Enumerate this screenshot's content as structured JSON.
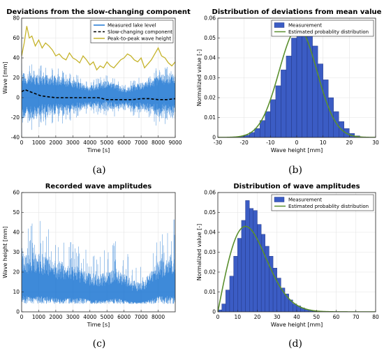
{
  "chart_data": [
    {
      "panel": "(a)",
      "type": "line",
      "title": "Deviations from the slow-changing component",
      "xlabel": "Time [s]",
      "ylabel": "Wave [mm]",
      "xlim": [
        0,
        9000
      ],
      "ylim": [
        -40,
        80
      ],
      "xticks": [
        0,
        1000,
        2000,
        3000,
        4000,
        5000,
        6000,
        7000,
        8000,
        9000
      ],
      "yticks": [
        -40,
        -20,
        0,
        20,
        40,
        60,
        80
      ],
      "grid": true,
      "legend": {
        "placement": "top-right",
        "entries": [
          "Measured lake level",
          "Slow-changing component",
          "Peak-to-peak wave height"
        ]
      },
      "series": [
        {
          "name": "Measured lake level",
          "color": "#1f77d4",
          "style": "noise-band",
          "x": [
            0,
            1000,
            2000,
            3000,
            4000,
            5000,
            6000,
            7000,
            8000,
            9000
          ],
          "upper": [
            30,
            28,
            26,
            22,
            14,
            20,
            12,
            18,
            26,
            30
          ],
          "lower": [
            -28,
            -24,
            -20,
            -18,
            -12,
            -14,
            -12,
            -16,
            -20,
            -24
          ]
        },
        {
          "name": "Slow-changing component",
          "color": "#000000",
          "style": "dashed",
          "x": [
            0,
            200,
            500,
            800,
            1100,
            1500,
            2000,
            2500,
            3000,
            3500,
            4000,
            4500,
            5000,
            5500,
            6000,
            6500,
            7000,
            7500,
            8000,
            8500,
            9000
          ],
          "y": [
            6,
            8,
            6,
            4,
            2,
            1,
            0,
            0,
            0,
            0,
            0,
            0,
            -2,
            -2,
            -2,
            -2,
            -1,
            -1,
            -2,
            -2,
            -1
          ]
        },
        {
          "name": "Peak-to-peak wave height",
          "color": "#c5b32a",
          "style": "solid",
          "x": [
            0,
            150,
            300,
            450,
            600,
            800,
            1000,
            1200,
            1400,
            1600,
            1800,
            2000,
            2200,
            2400,
            2600,
            2800,
            3000,
            3200,
            3400,
            3600,
            3800,
            4000,
            4200,
            4400,
            4600,
            4800,
            5000,
            5200,
            5400,
            5600,
            5800,
            6000,
            6200,
            6400,
            6600,
            6800,
            7000,
            7200,
            7400,
            7600,
            7800,
            8000,
            8200,
            8400,
            8600,
            8800,
            9000
          ],
          "y": [
            42,
            55,
            72,
            60,
            62,
            52,
            58,
            50,
            55,
            52,
            48,
            42,
            44,
            40,
            38,
            45,
            40,
            38,
            35,
            42,
            38,
            33,
            36,
            28,
            32,
            30,
            36,
            32,
            30,
            34,
            38,
            40,
            44,
            42,
            38,
            36,
            40,
            30,
            34,
            38,
            44,
            50,
            42,
            40,
            35,
            32,
            36
          ]
        }
      ]
    },
    {
      "panel": "(b)",
      "type": "bar",
      "title": "Distribution of deviations from mean value",
      "xlabel": "Wave height [mm]",
      "ylabel": "Normalized value [-]",
      "xlim": [
        -30,
        30
      ],
      "ylim": [
        0,
        0.06
      ],
      "xticks": [
        -30,
        -20,
        -10,
        0,
        10,
        20,
        30
      ],
      "yticks": [
        0,
        0.01,
        0.02,
        0.03,
        0.04,
        0.05,
        0.06
      ],
      "grid": true,
      "legend": {
        "placement": "top-right",
        "entries": [
          "Measurement",
          "Estimated probablity distribution"
        ]
      },
      "series": [
        {
          "name": "Measurement",
          "color": "#3b5cc4",
          "bin_width": 2,
          "bin_centers": [
            -23,
            -21,
            -19,
            -17,
            -15,
            -13,
            -11,
            -9,
            -7,
            -5,
            -3,
            -1,
            1,
            3,
            5,
            7,
            9,
            11,
            13,
            15,
            17,
            19,
            21,
            23
          ],
          "values": [
            0.0003,
            0.0006,
            0.0012,
            0.0025,
            0.0045,
            0.0085,
            0.013,
            0.019,
            0.026,
            0.034,
            0.041,
            0.05,
            0.053,
            0.053,
            0.052,
            0.046,
            0.037,
            0.029,
            0.02,
            0.013,
            0.008,
            0.0045,
            0.002,
            0.0008
          ]
        },
        {
          "name": "Estimated probablity distribution",
          "color": "#5a8f2e",
          "kind": "normal",
          "mean": 0.5,
          "std": 7.2,
          "peak": 0.055
        }
      ]
    },
    {
      "panel": "(c)",
      "type": "line",
      "title": "Recorded wave amplitudes",
      "xlabel": "Time [s]",
      "ylabel": "Wave height [mm]",
      "xlim": [
        0,
        9000
      ],
      "ylim": [
        0,
        60
      ],
      "xticks": [
        0,
        1000,
        2000,
        3000,
        4000,
        5000,
        6000,
        7000,
        8000
      ],
      "yticks": [
        0,
        10,
        20,
        30,
        40,
        50,
        60
      ],
      "grid": true,
      "series": [
        {
          "name": "",
          "color": "#1f77d4",
          "style": "noise-band",
          "x": [
            0,
            500,
            1000,
            1500,
            2000,
            2500,
            3000,
            3500,
            4000,
            4500,
            5000,
            5500,
            6000,
            6500,
            7000,
            7500,
            8000,
            8500,
            9000
          ],
          "upper": [
            52,
            45,
            48,
            44,
            40,
            38,
            36,
            35,
            30,
            28,
            34,
            38,
            32,
            26,
            24,
            36,
            42,
            46,
            52
          ],
          "lower": [
            4,
            4,
            4,
            4,
            4,
            4,
            4,
            4,
            4,
            4,
            4,
            4,
            4,
            4,
            4,
            4,
            4,
            4,
            4
          ],
          "dense_upper": [
            30,
            30,
            30,
            28,
            26,
            25,
            24,
            22,
            20,
            19,
            20,
            22,
            20,
            16,
            15,
            20,
            25,
            28,
            30
          ],
          "dense_lower": [
            8,
            8,
            8,
            8,
            7,
            7,
            7,
            7,
            6,
            6,
            6,
            7,
            6,
            5,
            5,
            6,
            8,
            8,
            8
          ]
        }
      ]
    },
    {
      "panel": "(d)",
      "type": "bar",
      "title": "Distribution of wave amplitudes",
      "xlabel": "Wave height [mm]",
      "ylabel": "Normalized value [-]",
      "xlim": [
        0,
        80
      ],
      "ylim": [
        0,
        0.06
      ],
      "xticks": [
        0,
        10,
        20,
        30,
        40,
        50,
        60,
        70,
        80
      ],
      "yticks": [
        0,
        0.01,
        0.02,
        0.03,
        0.04,
        0.05,
        0.06
      ],
      "grid": true,
      "legend": {
        "placement": "top-right",
        "entries": [
          "Measurement",
          "Estimated probablity distribution"
        ]
      },
      "series": [
        {
          "name": "Measurement",
          "color": "#3b5cc4",
          "bin_width": 2,
          "bin_centers": [
            1,
            3,
            5,
            7,
            9,
            11,
            13,
            15,
            17,
            19,
            21,
            23,
            25,
            27,
            29,
            31,
            33,
            35,
            37,
            39,
            41,
            43,
            45,
            47,
            49
          ],
          "values": [
            0.001,
            0.004,
            0.011,
            0.018,
            0.028,
            0.037,
            0.046,
            0.056,
            0.052,
            0.051,
            0.044,
            0.039,
            0.033,
            0.028,
            0.022,
            0.017,
            0.012,
            0.009,
            0.006,
            0.004,
            0.003,
            0.002,
            0.0012,
            0.0007,
            0.0003
          ]
        },
        {
          "name": "Estimated probablity distribution",
          "color": "#5a8f2e",
          "kind": "rayleigh",
          "sigma": 14,
          "peak": 0.043
        }
      ]
    }
  ],
  "captions": {
    "a": "(a)",
    "b": "(b)",
    "c": "(c)",
    "d": "(d)"
  }
}
